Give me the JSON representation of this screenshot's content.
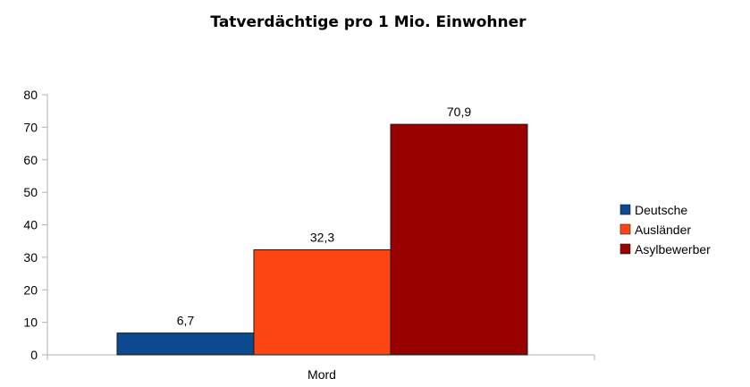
{
  "chart_data": {
    "type": "bar",
    "title": "Tatverdächtige pro 1 Mio. Einwohner",
    "categories": [
      "Mord"
    ],
    "series": [
      {
        "name": "Deutsche",
        "values": [
          6.7
        ],
        "label": "6,7",
        "color": "#0b4a8f"
      },
      {
        "name": "Ausländer",
        "values": [
          32.3
        ],
        "label": "32,3",
        "color": "#ff4513"
      },
      {
        "name": "Asylbewerber",
        "values": [
          70.9
        ],
        "label": "70,9",
        "color": "#990000"
      }
    ],
    "ylim": [
      0,
      80
    ],
    "yticks": [
      "0",
      "10",
      "20",
      "30",
      "40",
      "50",
      "60",
      "70",
      "80"
    ],
    "grid": false,
    "legend_position": "right"
  }
}
